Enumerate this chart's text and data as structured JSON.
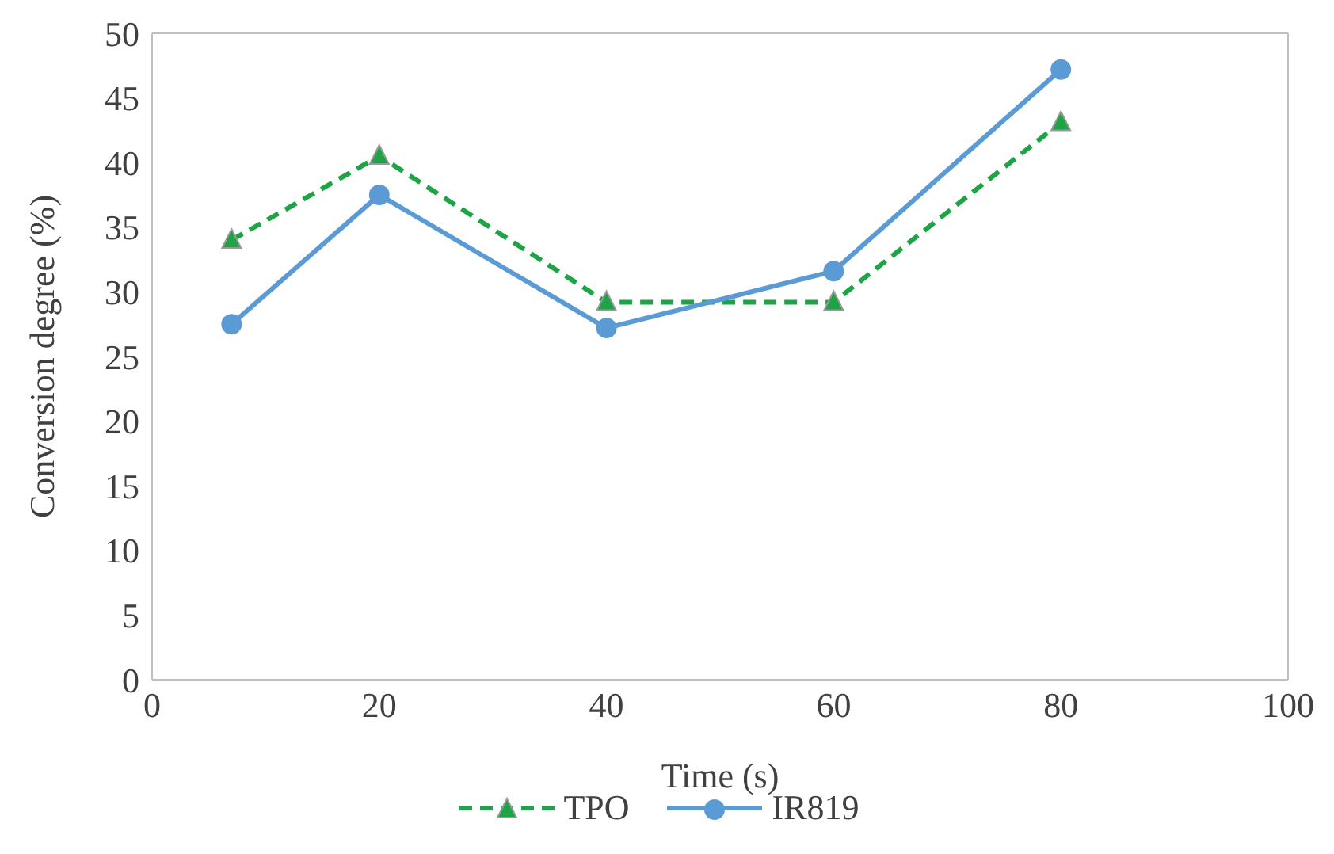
{
  "chart_data": {
    "type": "line",
    "xlabel": "Time (s)",
    "ylabel": "Conversion degree (%)",
    "x": [
      7,
      20,
      40,
      60,
      80
    ],
    "series": [
      {
        "name": "TPO",
        "color": "#1ea345",
        "values": [
          34,
          40.5,
          29.2,
          29.2,
          43.1
        ],
        "line_style": "dashed",
        "marker": "triangle"
      },
      {
        "name": "IR819",
        "color": "#5b9bd5",
        "values": [
          27.5,
          37.5,
          27.2,
          31.6,
          47.2
        ],
        "line_style": "solid",
        "marker": "circle"
      }
    ],
    "xlim": [
      0,
      100
    ],
    "xticks": [
      0,
      20,
      40,
      60,
      80,
      100
    ],
    "ylim": [
      0,
      50
    ],
    "yticks": [
      0,
      5,
      10,
      15,
      20,
      25,
      30,
      35,
      40,
      45,
      50
    ],
    "grid": false,
    "legend": "bottom"
  }
}
